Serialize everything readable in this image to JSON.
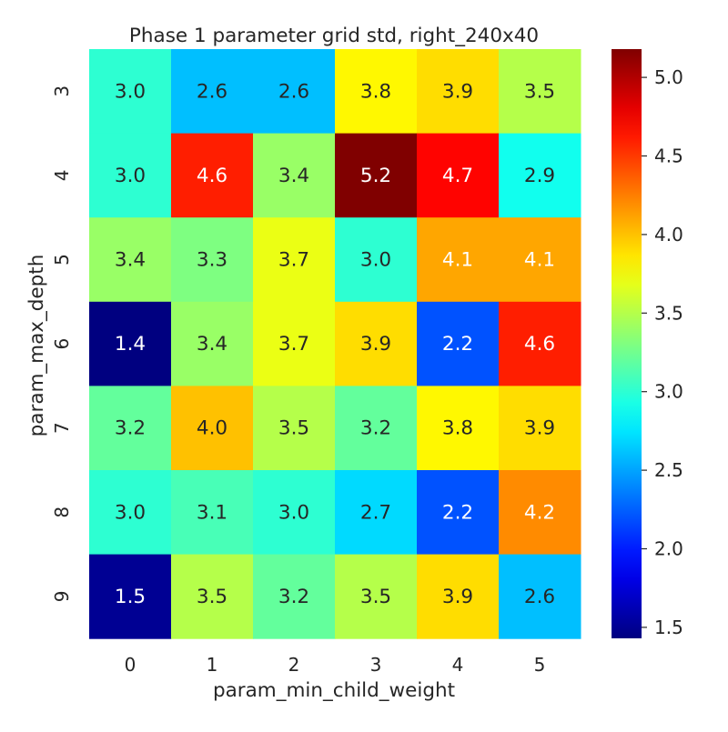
{
  "chart_data": {
    "type": "heatmap",
    "title": "Phase 1 parameter grid std, right_240x40",
    "xlabel": "param_min_child_weight",
    "ylabel": "param_max_depth",
    "x_categories": [
      "0",
      "1",
      "2",
      "3",
      "4",
      "5"
    ],
    "y_categories": [
      "3",
      "4",
      "5",
      "6",
      "7",
      "8",
      "9"
    ],
    "values": [
      [
        3.0,
        2.6,
        2.6,
        3.8,
        3.9,
        3.5
      ],
      [
        3.0,
        4.6,
        3.4,
        5.2,
        4.7,
        2.9
      ],
      [
        3.4,
        3.3,
        3.7,
        3.0,
        4.1,
        4.1
      ],
      [
        1.4,
        3.4,
        3.7,
        3.9,
        2.2,
        4.6
      ],
      [
        3.2,
        4.0,
        3.5,
        3.2,
        3.8,
        3.9
      ],
      [
        3.0,
        3.1,
        3.0,
        2.7,
        2.2,
        4.2
      ],
      [
        1.5,
        3.5,
        3.2,
        3.5,
        3.9,
        2.6
      ]
    ],
    "vmin": 1.43,
    "vmax": 5.18,
    "colormap": "jet",
    "colorbar_ticks": [
      "1.5",
      "2.0",
      "2.5",
      "3.0",
      "3.5",
      "4.0",
      "4.5",
      "5.0"
    ],
    "annotation_colors": {
      "dark": "#262626",
      "light": "#ffffff"
    }
  }
}
